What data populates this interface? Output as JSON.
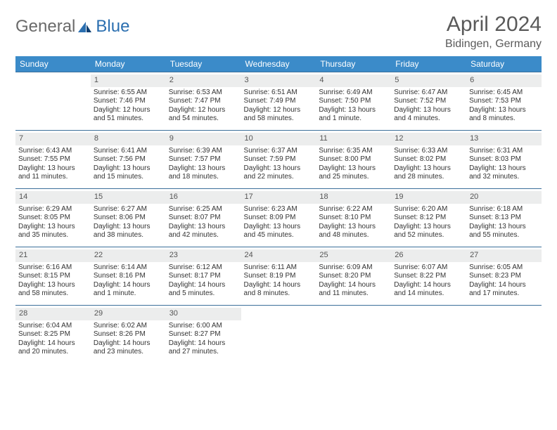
{
  "logo": {
    "word1": "General",
    "word2": "Blue"
  },
  "title": "April 2024",
  "subtitle": "Bidingen, Germany",
  "colors": {
    "header_bg": "#3b8bc9",
    "header_text": "#ffffff",
    "row_border": "#3b6f9a",
    "daynum_bg": "#eceded",
    "body_text": "#333333",
    "logo_gray": "#6a6a6a",
    "logo_blue": "#2b6fb0"
  },
  "dayNames": [
    "Sunday",
    "Monday",
    "Tuesday",
    "Wednesday",
    "Thursday",
    "Friday",
    "Saturday"
  ],
  "weeks": [
    [
      {
        "n": "",
        "lines": []
      },
      {
        "n": "1",
        "lines": [
          "Sunrise: 6:55 AM",
          "Sunset: 7:46 PM",
          "Daylight: 12 hours",
          "and 51 minutes."
        ]
      },
      {
        "n": "2",
        "lines": [
          "Sunrise: 6:53 AM",
          "Sunset: 7:47 PM",
          "Daylight: 12 hours",
          "and 54 minutes."
        ]
      },
      {
        "n": "3",
        "lines": [
          "Sunrise: 6:51 AM",
          "Sunset: 7:49 PM",
          "Daylight: 12 hours",
          "and 58 minutes."
        ]
      },
      {
        "n": "4",
        "lines": [
          "Sunrise: 6:49 AM",
          "Sunset: 7:50 PM",
          "Daylight: 13 hours",
          "and 1 minute."
        ]
      },
      {
        "n": "5",
        "lines": [
          "Sunrise: 6:47 AM",
          "Sunset: 7:52 PM",
          "Daylight: 13 hours",
          "and 4 minutes."
        ]
      },
      {
        "n": "6",
        "lines": [
          "Sunrise: 6:45 AM",
          "Sunset: 7:53 PM",
          "Daylight: 13 hours",
          "and 8 minutes."
        ]
      }
    ],
    [
      {
        "n": "7",
        "lines": [
          "Sunrise: 6:43 AM",
          "Sunset: 7:55 PM",
          "Daylight: 13 hours",
          "and 11 minutes."
        ]
      },
      {
        "n": "8",
        "lines": [
          "Sunrise: 6:41 AM",
          "Sunset: 7:56 PM",
          "Daylight: 13 hours",
          "and 15 minutes."
        ]
      },
      {
        "n": "9",
        "lines": [
          "Sunrise: 6:39 AM",
          "Sunset: 7:57 PM",
          "Daylight: 13 hours",
          "and 18 minutes."
        ]
      },
      {
        "n": "10",
        "lines": [
          "Sunrise: 6:37 AM",
          "Sunset: 7:59 PM",
          "Daylight: 13 hours",
          "and 22 minutes."
        ]
      },
      {
        "n": "11",
        "lines": [
          "Sunrise: 6:35 AM",
          "Sunset: 8:00 PM",
          "Daylight: 13 hours",
          "and 25 minutes."
        ]
      },
      {
        "n": "12",
        "lines": [
          "Sunrise: 6:33 AM",
          "Sunset: 8:02 PM",
          "Daylight: 13 hours",
          "and 28 minutes."
        ]
      },
      {
        "n": "13",
        "lines": [
          "Sunrise: 6:31 AM",
          "Sunset: 8:03 PM",
          "Daylight: 13 hours",
          "and 32 minutes."
        ]
      }
    ],
    [
      {
        "n": "14",
        "lines": [
          "Sunrise: 6:29 AM",
          "Sunset: 8:05 PM",
          "Daylight: 13 hours",
          "and 35 minutes."
        ]
      },
      {
        "n": "15",
        "lines": [
          "Sunrise: 6:27 AM",
          "Sunset: 8:06 PM",
          "Daylight: 13 hours",
          "and 38 minutes."
        ]
      },
      {
        "n": "16",
        "lines": [
          "Sunrise: 6:25 AM",
          "Sunset: 8:07 PM",
          "Daylight: 13 hours",
          "and 42 minutes."
        ]
      },
      {
        "n": "17",
        "lines": [
          "Sunrise: 6:23 AM",
          "Sunset: 8:09 PM",
          "Daylight: 13 hours",
          "and 45 minutes."
        ]
      },
      {
        "n": "18",
        "lines": [
          "Sunrise: 6:22 AM",
          "Sunset: 8:10 PM",
          "Daylight: 13 hours",
          "and 48 minutes."
        ]
      },
      {
        "n": "19",
        "lines": [
          "Sunrise: 6:20 AM",
          "Sunset: 8:12 PM",
          "Daylight: 13 hours",
          "and 52 minutes."
        ]
      },
      {
        "n": "20",
        "lines": [
          "Sunrise: 6:18 AM",
          "Sunset: 8:13 PM",
          "Daylight: 13 hours",
          "and 55 minutes."
        ]
      }
    ],
    [
      {
        "n": "21",
        "lines": [
          "Sunrise: 6:16 AM",
          "Sunset: 8:15 PM",
          "Daylight: 13 hours",
          "and 58 minutes."
        ]
      },
      {
        "n": "22",
        "lines": [
          "Sunrise: 6:14 AM",
          "Sunset: 8:16 PM",
          "Daylight: 14 hours",
          "and 1 minute."
        ]
      },
      {
        "n": "23",
        "lines": [
          "Sunrise: 6:12 AM",
          "Sunset: 8:17 PM",
          "Daylight: 14 hours",
          "and 5 minutes."
        ]
      },
      {
        "n": "24",
        "lines": [
          "Sunrise: 6:11 AM",
          "Sunset: 8:19 PM",
          "Daylight: 14 hours",
          "and 8 minutes."
        ]
      },
      {
        "n": "25",
        "lines": [
          "Sunrise: 6:09 AM",
          "Sunset: 8:20 PM",
          "Daylight: 14 hours",
          "and 11 minutes."
        ]
      },
      {
        "n": "26",
        "lines": [
          "Sunrise: 6:07 AM",
          "Sunset: 8:22 PM",
          "Daylight: 14 hours",
          "and 14 minutes."
        ]
      },
      {
        "n": "27",
        "lines": [
          "Sunrise: 6:05 AM",
          "Sunset: 8:23 PM",
          "Daylight: 14 hours",
          "and 17 minutes."
        ]
      }
    ],
    [
      {
        "n": "28",
        "lines": [
          "Sunrise: 6:04 AM",
          "Sunset: 8:25 PM",
          "Daylight: 14 hours",
          "and 20 minutes."
        ]
      },
      {
        "n": "29",
        "lines": [
          "Sunrise: 6:02 AM",
          "Sunset: 8:26 PM",
          "Daylight: 14 hours",
          "and 23 minutes."
        ]
      },
      {
        "n": "30",
        "lines": [
          "Sunrise: 6:00 AM",
          "Sunset: 8:27 PM",
          "Daylight: 14 hours",
          "and 27 minutes."
        ]
      },
      {
        "n": "",
        "lines": []
      },
      {
        "n": "",
        "lines": []
      },
      {
        "n": "",
        "lines": []
      },
      {
        "n": "",
        "lines": []
      }
    ]
  ]
}
